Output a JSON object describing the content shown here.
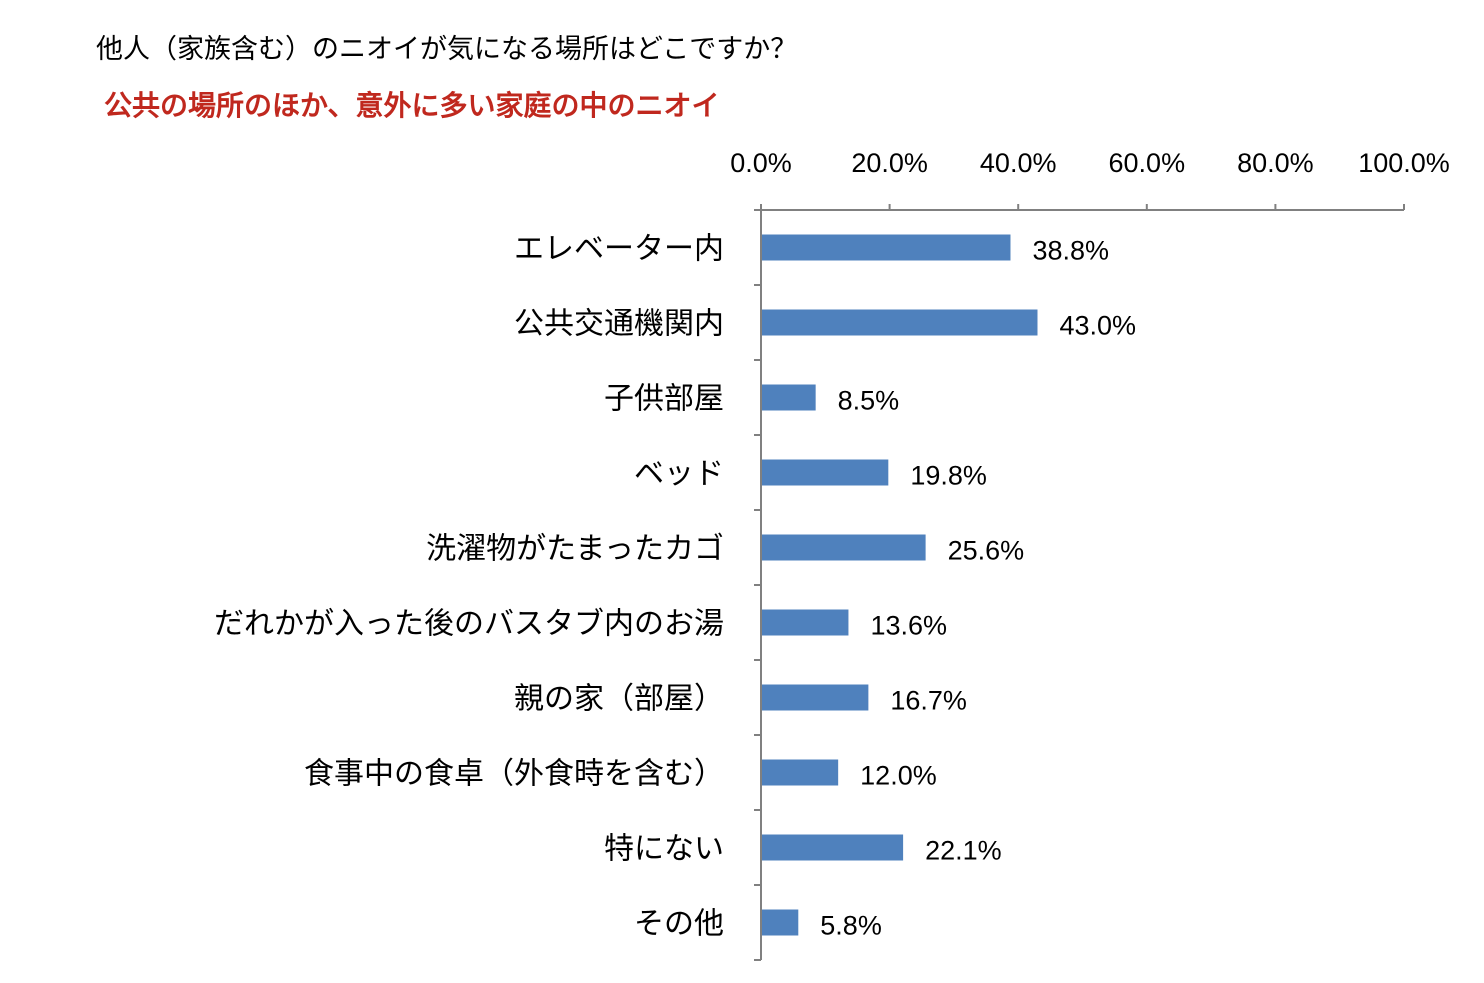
{
  "question": "他人（家族含む）のニオイが気になる場所はどこですか？",
  "subtitle": "公共の場所のほか、意外に多い家庭の中のニオイ",
  "chart_data": {
    "type": "bar",
    "orientation": "horizontal",
    "title": "他人（家族含む）のニオイが気になる場所はどこですか？",
    "subtitle": "公共の場所のほか、意外に多い家庭の中のニオイ",
    "categories": [
      "エレベーター内",
      "公共交通機関内",
      "子供部屋",
      "ベッド",
      "洗濯物がたまったカゴ",
      "だれかが入った後のバスタブ内のお湯",
      "親の家（部屋）",
      "食事中の食卓（外食時を含む）",
      "特にない",
      "その他"
    ],
    "values": [
      38.8,
      43.0,
      8.5,
      19.8,
      25.6,
      13.6,
      16.7,
      12.0,
      22.1,
      5.8
    ],
    "value_labels": [
      "38.8%",
      "43.0%",
      "8.5%",
      "19.8%",
      "25.6%",
      "13.6%",
      "16.7%",
      "12.0%",
      "22.1%",
      "5.8%"
    ],
    "xlim": [
      0,
      100
    ],
    "x_ticks": [
      0,
      20,
      40,
      60,
      80,
      100
    ],
    "x_tick_labels": [
      "0.0%",
      "20.0%",
      "40.0%",
      "60.0%",
      "80.0%",
      "100.0%"
    ],
    "axis_position": "top",
    "grid": false,
    "legend": false,
    "colors": {
      "bar": "#4f81bd",
      "axis": "#808080",
      "subtitle": "#c0281e"
    }
  }
}
